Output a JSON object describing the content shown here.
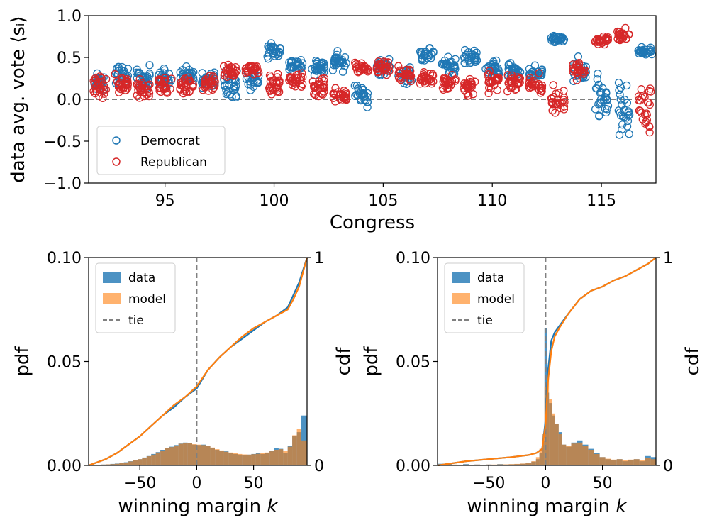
{
  "chart_data": [
    {
      "type": "scatter",
      "title": "",
      "xlabel": "Congress",
      "ylabel": "data avg. vote",
      "ylabel_math": "⟨sᵢ⟩",
      "xlim": [
        91.5,
        117.5
      ],
      "ylim": [
        -1.0,
        1.0
      ],
      "xticks": [
        95,
        100,
        105,
        110,
        115
      ],
      "yticks": [
        -1.0,
        -0.5,
        0.0,
        0.5,
        1.0
      ],
      "ytick_labels": [
        "−1.0",
        "−0.5",
        "0.0",
        "0.5",
        "1.0"
      ],
      "reference_line": {
        "y": 0.0,
        "style": "dashed",
        "color": "#808080"
      },
      "legend": {
        "position": "lower-left"
      },
      "series": [
        {
          "name": "Democrat",
          "color": "#1f77b4",
          "congresses": [
            92,
            93,
            94,
            95,
            96,
            97,
            98,
            99,
            100,
            101,
            102,
            103,
            104,
            105,
            106,
            107,
            108,
            109,
            110,
            111,
            112,
            113,
            114,
            115,
            116,
            117
          ],
          "means": [
            0.2,
            0.28,
            0.27,
            0.25,
            0.28,
            0.24,
            0.19,
            0.22,
            0.58,
            0.42,
            0.38,
            0.45,
            0.06,
            0.38,
            0.3,
            0.53,
            0.4,
            0.5,
            0.35,
            0.33,
            0.3,
            0.72,
            0.33,
            0.05,
            -0.1,
            0.57
          ],
          "spreads": [
            0.08,
            0.1,
            0.1,
            0.09,
            0.08,
            0.08,
            0.12,
            0.12,
            0.07,
            0.07,
            0.08,
            0.08,
            0.1,
            0.09,
            0.09,
            0.07,
            0.08,
            0.07,
            0.08,
            0.07,
            0.07,
            0.03,
            0.12,
            0.22,
            0.3,
            0.04
          ]
        },
        {
          "name": "Republican",
          "color": "#d62728",
          "congresses": [
            92,
            93,
            94,
            95,
            96,
            97,
            98,
            99,
            100,
            101,
            102,
            103,
            104,
            105,
            106,
            107,
            108,
            109,
            110,
            111,
            112,
            113,
            114,
            115,
            116,
            117
          ],
          "means": [
            0.14,
            0.18,
            0.12,
            0.17,
            0.16,
            0.2,
            0.33,
            0.37,
            0.18,
            0.22,
            0.16,
            0.04,
            0.38,
            0.38,
            0.3,
            0.24,
            0.22,
            0.14,
            0.2,
            0.21,
            0.18,
            -0.06,
            0.35,
            0.7,
            0.78,
            -0.1
          ],
          "spreads": [
            0.09,
            0.08,
            0.09,
            0.08,
            0.08,
            0.07,
            0.06,
            0.06,
            0.12,
            0.1,
            0.1,
            0.08,
            0.06,
            0.07,
            0.07,
            0.08,
            0.09,
            0.08,
            0.08,
            0.08,
            0.08,
            0.15,
            0.08,
            0.04,
            0.05,
            0.22
          ]
        }
      ]
    },
    {
      "type": "bar",
      "title": "",
      "xlabel": "winning margin",
      "xlabel_math": "k",
      "ylabel": "pdf",
      "ylabel_right": "cdf",
      "xlim": [
        -95,
        97
      ],
      "ylim": [
        0.0,
        0.1
      ],
      "ylim_right": [
        0,
        1
      ],
      "xticks": [
        -50,
        0,
        50
      ],
      "xtick_labels": [
        "−50",
        "0",
        "50"
      ],
      "yticks": [
        0.0,
        0.05,
        0.1
      ],
      "ytick_labels": [
        "0.00",
        "0.05",
        "0.10"
      ],
      "yticks_right": [
        0,
        1
      ],
      "ytick_labels_right": [
        "0",
        "1"
      ],
      "legend": {
        "position": "top-left",
        "entries": [
          "data",
          "model",
          "tie"
        ]
      },
      "tie_x": 0,
      "bin_centers": [
        -90,
        -86,
        -82,
        -78,
        -74,
        -70,
        -66,
        -62,
        -58,
        -54,
        -50,
        -46,
        -42,
        -38,
        -34,
        -30,
        -26,
        -22,
        -18,
        -14,
        -10,
        -6,
        -2,
        2,
        6,
        10,
        14,
        18,
        22,
        26,
        30,
        34,
        38,
        42,
        46,
        50,
        54,
        58,
        62,
        66,
        70,
        74,
        78,
        82,
        86,
        90,
        94
      ],
      "series": [
        {
          "name": "data",
          "color": "#1f77b4",
          "values": [
            0.0002,
            0.0003,
            0.0004,
            0.0005,
            0.0007,
            0.0009,
            0.0012,
            0.0015,
            0.002,
            0.0025,
            0.003,
            0.0038,
            0.0045,
            0.0055,
            0.0064,
            0.0075,
            0.0085,
            0.009,
            0.0098,
            0.0105,
            0.011,
            0.0108,
            0.01,
            0.0098,
            0.01,
            0.0095,
            0.0085,
            0.0075,
            0.007,
            0.0068,
            0.006,
            0.0055,
            0.0052,
            0.005,
            0.0052,
            0.0055,
            0.0058,
            0.0055,
            0.006,
            0.007,
            0.0085,
            0.008,
            0.006,
            0.0095,
            0.014,
            0.016,
            0.024
          ]
        },
        {
          "name": "model",
          "color": "#ff7f0e",
          "values": [
            0.0002,
            0.0003,
            0.0004,
            0.0005,
            0.0006,
            0.0008,
            0.0011,
            0.0014,
            0.0019,
            0.0024,
            0.003,
            0.0036,
            0.0044,
            0.0052,
            0.0062,
            0.0072,
            0.0082,
            0.0088,
            0.0096,
            0.0104,
            0.0108,
            0.0106,
            0.0102,
            0.01,
            0.0098,
            0.0093,
            0.0086,
            0.0078,
            0.0072,
            0.0066,
            0.0062,
            0.0058,
            0.0055,
            0.0053,
            0.0052,
            0.0054,
            0.0056,
            0.0058,
            0.0062,
            0.0068,
            0.0075,
            0.0078,
            0.007,
            0.009,
            0.0145,
            0.0175,
            0.012
          ]
        },
        {
          "name": "data cdf",
          "color": "#1f77b4",
          "x": [
            -95,
            -80,
            -70,
            -60,
            -50,
            -40,
            -30,
            -20,
            -10,
            0,
            10,
            20,
            30,
            40,
            50,
            60,
            70,
            80,
            85,
            90,
            97
          ],
          "values": [
            0.0,
            0.03,
            0.06,
            0.1,
            0.14,
            0.19,
            0.24,
            0.28,
            0.33,
            0.37,
            0.46,
            0.52,
            0.57,
            0.61,
            0.65,
            0.69,
            0.72,
            0.76,
            0.82,
            0.88,
            1.0
          ]
        },
        {
          "name": "model cdf",
          "color": "#ff7f0e",
          "x": [
            -95,
            -80,
            -70,
            -60,
            -50,
            -40,
            -30,
            -20,
            -10,
            0,
            10,
            20,
            30,
            40,
            50,
            60,
            70,
            80,
            85,
            90,
            97
          ],
          "values": [
            0.0,
            0.03,
            0.06,
            0.1,
            0.14,
            0.19,
            0.24,
            0.29,
            0.33,
            0.38,
            0.46,
            0.52,
            0.57,
            0.62,
            0.66,
            0.69,
            0.72,
            0.75,
            0.8,
            0.86,
            1.0
          ]
        }
      ]
    },
    {
      "type": "bar",
      "title": "",
      "xlabel": "winning margin",
      "xlabel_math": "k",
      "ylabel": "pdf",
      "ylabel_right": "cdf",
      "xlim": [
        -95,
        97
      ],
      "ylim": [
        0.0,
        0.1
      ],
      "ylim_right": [
        0,
        1
      ],
      "xticks": [
        -50,
        0,
        50
      ],
      "xtick_labels": [
        "−50",
        "0",
        "50"
      ],
      "yticks": [
        0.0,
        0.05,
        0.1
      ],
      "ytick_labels": [
        "0.00",
        "0.05",
        "0.10"
      ],
      "yticks_right": [
        0,
        1
      ],
      "ytick_labels_right": [
        "0",
        "1"
      ],
      "legend": {
        "position": "top-left",
        "entries": [
          "data",
          "model",
          "tie"
        ]
      },
      "tie_x": 0,
      "bin_centers": [
        -90,
        -85,
        -80,
        -75,
        -70,
        -65,
        -60,
        -55,
        -50,
        -45,
        -40,
        -35,
        -30,
        -25,
        -20,
        -15,
        -10,
        -7,
        -4,
        -2,
        0,
        2,
        4,
        7,
        10,
        13,
        16,
        20,
        25,
        30,
        35,
        40,
        45,
        50,
        55,
        60,
        65,
        70,
        75,
        80,
        85,
        90,
        95
      ],
      "series": [
        {
          "name": "data",
          "color": "#1f77b4",
          "values": [
            0.0008,
            0.0005,
            0.0003,
            0.0003,
            0.0006,
            0.0002,
            0.0004,
            0.0002,
            0.0004,
            0.0003,
            0.0006,
            0.0004,
            0.0005,
            0.0006,
            0.0008,
            0.001,
            0.0018,
            0.003,
            0.006,
            0.012,
            0.066,
            0.035,
            0.03,
            0.024,
            0.02,
            0.016,
            0.01,
            0.009,
            0.011,
            0.012,
            0.01,
            0.008,
            0.006,
            0.004,
            0.003,
            0.0025,
            0.003,
            0.002,
            0.0025,
            0.003,
            0.002,
            0.0045,
            0.004
          ]
        },
        {
          "name": "model",
          "color": "#ff7f0e",
          "values": [
            0.0005,
            0.0004,
            0.0004,
            0.0003,
            0.0004,
            0.0003,
            0.0004,
            0.0003,
            0.0004,
            0.0004,
            0.0005,
            0.0005,
            0.0006,
            0.0007,
            0.0009,
            0.0012,
            0.002,
            0.004,
            0.008,
            0.015,
            0.038,
            0.043,
            0.032,
            0.025,
            0.02,
            0.015,
            0.01,
            0.0095,
            0.0105,
            0.011,
            0.0095,
            0.0075,
            0.0055,
            0.004,
            0.0032,
            0.0028,
            0.003,
            0.0025,
            0.0028,
            0.003,
            0.0025,
            0.0035,
            0.003
          ]
        },
        {
          "name": "data cdf",
          "color": "#1f77b4",
          "x": [
            -95,
            -70,
            -50,
            -30,
            -15,
            -8,
            -3,
            0,
            2,
            5,
            8,
            12,
            20,
            30,
            40,
            50,
            60,
            70,
            80,
            90,
            97
          ],
          "values": [
            0.0,
            0.02,
            0.03,
            0.04,
            0.05,
            0.06,
            0.08,
            0.22,
            0.45,
            0.6,
            0.64,
            0.67,
            0.73,
            0.8,
            0.84,
            0.86,
            0.89,
            0.91,
            0.94,
            0.97,
            1.0
          ]
        },
        {
          "name": "model cdf",
          "color": "#ff7f0e",
          "x": [
            -95,
            -70,
            -50,
            -30,
            -15,
            -8,
            -3,
            0,
            2,
            5,
            8,
            12,
            20,
            30,
            40,
            50,
            60,
            70,
            80,
            90,
            97
          ],
          "values": [
            0.0,
            0.02,
            0.03,
            0.04,
            0.05,
            0.06,
            0.08,
            0.2,
            0.4,
            0.55,
            0.62,
            0.66,
            0.73,
            0.8,
            0.84,
            0.86,
            0.89,
            0.91,
            0.94,
            0.97,
            1.0
          ]
        }
      ]
    }
  ]
}
